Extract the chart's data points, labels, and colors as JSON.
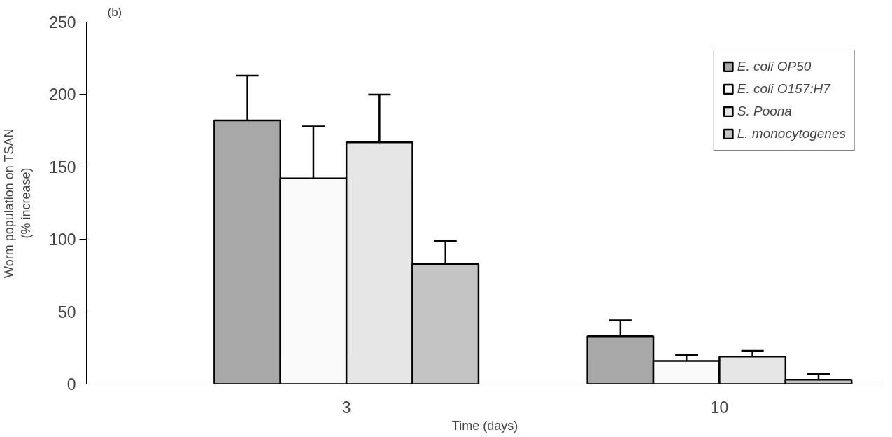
{
  "chart_data": {
    "type": "bar",
    "title": "(b)",
    "xlabel": "Time (days)",
    "ylabel": "Worm population on TSAN\n(% increase)",
    "categories": [
      "3",
      "10"
    ],
    "series": [
      {
        "name": "E. coli OP50",
        "color": "#a8a8a8",
        "values": [
          182,
          33
        ],
        "errors": [
          [
            182,
            213
          ],
          [
            33,
            44
          ]
        ]
      },
      {
        "name": "E. coli O157:H7",
        "color": "#fafafa",
        "values": [
          142,
          16
        ],
        "errors": [
          [
            142,
            178
          ],
          [
            16,
            20
          ]
        ]
      },
      {
        "name": "S. Poona",
        "color": "#e6e6e6",
        "values": [
          167,
          19
        ],
        "errors": [
          [
            167,
            200
          ],
          [
            19,
            23
          ]
        ]
      },
      {
        "name": "L. monocytogenes",
        "color": "#c4c4c4",
        "values": [
          83,
          3
        ],
        "errors": [
          [
            83,
            99
          ],
          [
            3,
            7
          ]
        ]
      }
    ],
    "ylim": [
      0,
      250
    ],
    "yticks": [
      0,
      50,
      100,
      150,
      200,
      250
    ],
    "grid": false,
    "legend": "top right"
  }
}
